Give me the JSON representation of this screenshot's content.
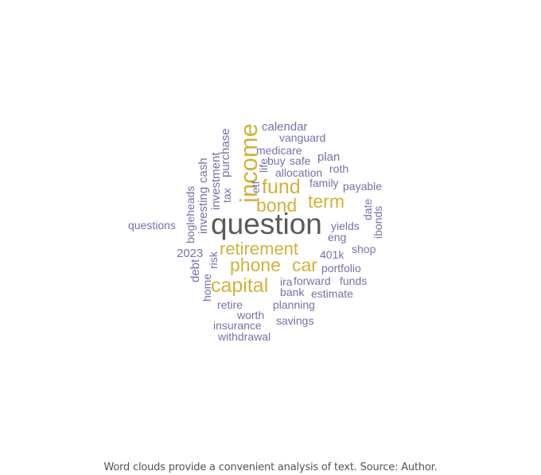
{
  "colors": {
    "accent": "#d4b13a",
    "secondary": "#7373a8",
    "dominant": "#5a5a5a"
  },
  "cloud": {
    "words": [
      {
        "text": "question",
        "tone": "dominant"
      },
      {
        "text": "income",
        "tone": "accent"
      },
      {
        "text": "fund",
        "tone": "accent"
      },
      {
        "text": "bond",
        "tone": "accent"
      },
      {
        "text": "term",
        "tone": "accent"
      },
      {
        "text": "retirement",
        "tone": "accent"
      },
      {
        "text": "phone",
        "tone": "accent"
      },
      {
        "text": "car",
        "tone": "accent"
      },
      {
        "text": "capital",
        "tone": "accent"
      },
      {
        "text": "calendar",
        "tone": "secondary"
      },
      {
        "text": "vanguard",
        "tone": "secondary"
      },
      {
        "text": "medicare",
        "tone": "secondary"
      },
      {
        "text": "plan",
        "tone": "secondary"
      },
      {
        "text": "buy",
        "tone": "secondary"
      },
      {
        "text": "safe",
        "tone": "secondary"
      },
      {
        "text": "allocation",
        "tone": "secondary"
      },
      {
        "text": "roth",
        "tone": "secondary"
      },
      {
        "text": "family",
        "tone": "secondary"
      },
      {
        "text": "payable",
        "tone": "secondary"
      },
      {
        "text": "purchase",
        "tone": "secondary"
      },
      {
        "text": "investment",
        "tone": "secondary"
      },
      {
        "text": "tax",
        "tone": "secondary"
      },
      {
        "text": "cash",
        "tone": "secondary"
      },
      {
        "text": "investing",
        "tone": "secondary"
      },
      {
        "text": "bogleheads",
        "tone": "secondary"
      },
      {
        "text": "life",
        "tone": "secondary"
      },
      {
        "text": "etf",
        "tone": "secondary"
      },
      {
        "text": "date",
        "tone": "secondary"
      },
      {
        "text": "ibonds",
        "tone": "secondary"
      },
      {
        "text": "questions",
        "tone": "secondary"
      },
      {
        "text": "yields",
        "tone": "secondary"
      },
      {
        "text": "eng",
        "tone": "secondary"
      },
      {
        "text": "shop",
        "tone": "secondary"
      },
      {
        "text": "2023",
        "tone": "secondary"
      },
      {
        "text": "risk",
        "tone": "secondary"
      },
      {
        "text": "401k",
        "tone": "secondary"
      },
      {
        "text": "debt",
        "tone": "secondary"
      },
      {
        "text": "portfolio",
        "tone": "secondary"
      },
      {
        "text": "home",
        "tone": "secondary"
      },
      {
        "text": "ira",
        "tone": "secondary"
      },
      {
        "text": "forward",
        "tone": "secondary"
      },
      {
        "text": "funds",
        "tone": "secondary"
      },
      {
        "text": "bank",
        "tone": "secondary"
      },
      {
        "text": "estimate",
        "tone": "secondary"
      },
      {
        "text": "retire",
        "tone": "secondary"
      },
      {
        "text": "planning",
        "tone": "secondary"
      },
      {
        "text": "worth",
        "tone": "secondary"
      },
      {
        "text": "savings",
        "tone": "secondary"
      },
      {
        "text": "insurance",
        "tone": "secondary"
      },
      {
        "text": "withdrawal",
        "tone": "secondary"
      }
    ]
  },
  "caption": "Word clouds provide a convenient analysis of text. Source: Author."
}
